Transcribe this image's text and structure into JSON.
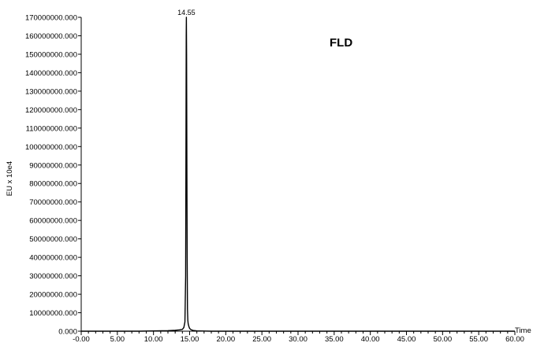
{
  "chart_data": {
    "type": "line",
    "title": "",
    "annotation": "FLD",
    "xlabel": "Time",
    "ylabel": "EU x 10e4",
    "xlim": [
      -0.0,
      60.0
    ],
    "ylim": [
      0,
      170000000
    ],
    "x_ticks": [
      "-0.00",
      "5.00",
      "10.00",
      "15.00",
      "20.00",
      "25.00",
      "30.00",
      "35.00",
      "40.00",
      "45.00",
      "50.00",
      "55.00",
      "60.00"
    ],
    "y_ticks": [
      "0.000",
      "10000000.000",
      "20000000.000",
      "30000000.000",
      "40000000.000",
      "50000000.000",
      "60000000.000",
      "70000000.000",
      "80000000.000",
      "90000000.000",
      "100000000.000",
      "110000000.000",
      "120000000.000",
      "130000000.000",
      "140000000.000",
      "150000000.000",
      "160000000.000",
      "170000000.000"
    ],
    "peaks": [
      {
        "label": "14.55",
        "x": 14.55,
        "y": 170000000
      }
    ],
    "series": [
      {
        "color": "#000000",
        "x": [
          0,
          8,
          12,
          13,
          13.6,
          14.0,
          14.2,
          14.35,
          14.45,
          14.5,
          14.53,
          14.55,
          14.58,
          14.62,
          14.66,
          14.7,
          14.75,
          14.8,
          14.9,
          15.0,
          15.2,
          15.5,
          16,
          18,
          20,
          30,
          40,
          50,
          60
        ],
        "y": [
          0,
          0,
          300000,
          500000,
          700000,
          1000000,
          2000000,
          5000000,
          30000000,
          110000000,
          160000000,
          170000000,
          150000000,
          90000000,
          40000000,
          12000000,
          6000000,
          4000000,
          2500000,
          1500000,
          800000,
          400000,
          200000,
          0,
          0,
          0,
          0,
          0,
          0
        ]
      }
    ]
  }
}
